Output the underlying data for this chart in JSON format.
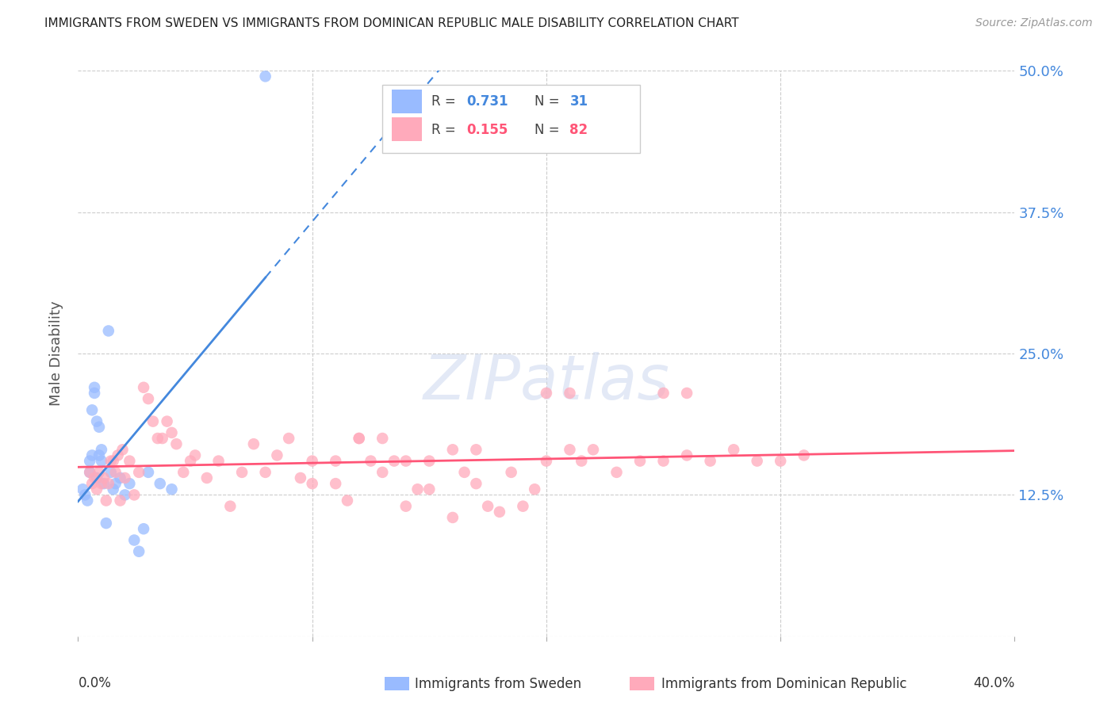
{
  "title": "IMMIGRANTS FROM SWEDEN VS IMMIGRANTS FROM DOMINICAN REPUBLIC MALE DISABILITY CORRELATION CHART",
  "source": "Source: ZipAtlas.com",
  "ylabel": "Male Disability",
  "xmin": 0.0,
  "xmax": 0.4,
  "ymin": 0.0,
  "ymax": 0.5,
  "yticks": [
    0.0,
    0.125,
    0.25,
    0.375,
    0.5
  ],
  "ytick_labels": [
    "",
    "12.5%",
    "25.0%",
    "37.5%",
    "50.0%"
  ],
  "legend_r1": "0.731",
  "legend_n1": "31",
  "legend_r2": "0.155",
  "legend_n2": "82",
  "legend_label1": "Immigrants from Sweden",
  "legend_label2": "Immigrants from Dominican Republic",
  "color_blue": "#99bbff",
  "color_pink": "#ffaabb",
  "color_blue_line": "#4488dd",
  "color_pink_line": "#ff5577",
  "color_text_blue": "#4488dd",
  "color_text_pink": "#ff5577",
  "watermark": "ZIPatlas",
  "sweden_x": [
    0.002,
    0.003,
    0.004,
    0.005,
    0.005,
    0.006,
    0.006,
    0.007,
    0.007,
    0.008,
    0.008,
    0.009,
    0.009,
    0.01,
    0.01,
    0.011,
    0.012,
    0.013,
    0.014,
    0.015,
    0.016,
    0.018,
    0.02,
    0.022,
    0.024,
    0.026,
    0.028,
    0.03,
    0.035,
    0.04,
    0.08
  ],
  "sweden_y": [
    0.13,
    0.125,
    0.12,
    0.145,
    0.155,
    0.16,
    0.2,
    0.215,
    0.22,
    0.14,
    0.19,
    0.185,
    0.16,
    0.165,
    0.155,
    0.135,
    0.1,
    0.27,
    0.145,
    0.13,
    0.135,
    0.14,
    0.125,
    0.135,
    0.085,
    0.075,
    0.095,
    0.145,
    0.135,
    0.13,
    0.495
  ],
  "domrep_x": [
    0.005,
    0.006,
    0.007,
    0.008,
    0.009,
    0.01,
    0.011,
    0.012,
    0.013,
    0.014,
    0.015,
    0.016,
    0.017,
    0.018,
    0.019,
    0.02,
    0.022,
    0.024,
    0.026,
    0.028,
    0.03,
    0.032,
    0.034,
    0.036,
    0.038,
    0.04,
    0.042,
    0.045,
    0.048,
    0.05,
    0.055,
    0.06,
    0.065,
    0.07,
    0.075,
    0.08,
    0.085,
    0.09,
    0.095,
    0.1,
    0.11,
    0.115,
    0.12,
    0.125,
    0.13,
    0.135,
    0.14,
    0.145,
    0.15,
    0.16,
    0.165,
    0.17,
    0.175,
    0.18,
    0.185,
    0.19,
    0.195,
    0.2,
    0.21,
    0.215,
    0.22,
    0.23,
    0.24,
    0.25,
    0.26,
    0.27,
    0.28,
    0.29,
    0.3,
    0.31,
    0.25,
    0.26,
    0.2,
    0.21,
    0.1,
    0.11,
    0.12,
    0.13,
    0.14,
    0.15,
    0.16,
    0.17
  ],
  "domrep_y": [
    0.145,
    0.135,
    0.14,
    0.13,
    0.145,
    0.135,
    0.14,
    0.12,
    0.135,
    0.155,
    0.155,
    0.145,
    0.16,
    0.12,
    0.165,
    0.14,
    0.155,
    0.125,
    0.145,
    0.22,
    0.21,
    0.19,
    0.175,
    0.175,
    0.19,
    0.18,
    0.17,
    0.145,
    0.155,
    0.16,
    0.14,
    0.155,
    0.115,
    0.145,
    0.17,
    0.145,
    0.16,
    0.175,
    0.14,
    0.135,
    0.135,
    0.12,
    0.175,
    0.155,
    0.145,
    0.155,
    0.115,
    0.13,
    0.13,
    0.105,
    0.145,
    0.135,
    0.115,
    0.11,
    0.145,
    0.115,
    0.13,
    0.155,
    0.165,
    0.155,
    0.165,
    0.145,
    0.155,
    0.155,
    0.16,
    0.155,
    0.165,
    0.155,
    0.155,
    0.16,
    0.215,
    0.215,
    0.215,
    0.215,
    0.155,
    0.155,
    0.175,
    0.175,
    0.155,
    0.155,
    0.165,
    0.165
  ]
}
